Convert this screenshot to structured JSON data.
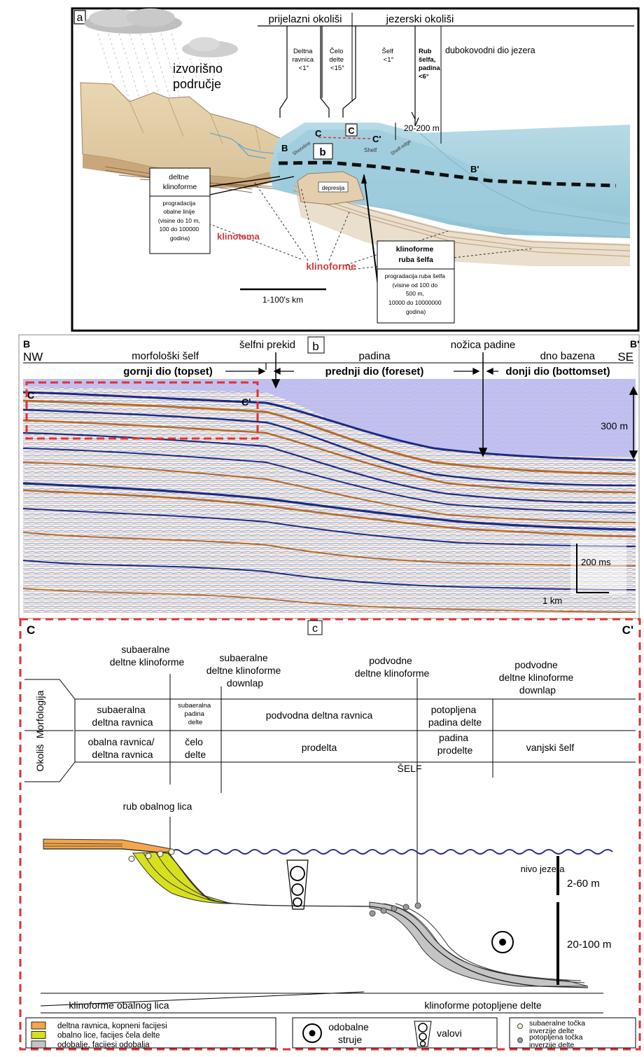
{
  "panel_a": {
    "letter": "a",
    "header_transitional": "prijelazni okoliši",
    "header_lake": "jezerski okoliši",
    "col_delta_plain": [
      "Deltna",
      "ravnica",
      "<1°"
    ],
    "col_delta_front": [
      "Čelo",
      "delte",
      "<15°"
    ],
    "col_shelf": [
      "Šelf",
      "<1°"
    ],
    "col_shelf_edge": [
      "Rub",
      "šelfa,",
      "padina",
      "<6°"
    ],
    "col_deep": "dubokovodni dio jezera",
    "source_area": [
      "izvorišno",
      "područje"
    ],
    "depth": "20-200 m",
    "label_c": "C",
    "label_c_box": "C",
    "label_c_prime": "C'",
    "label_b": "B",
    "label_b_box": "b",
    "label_b_prime": "B'",
    "shoreline": "Shoreline",
    "shelf": "Shelf",
    "shelf_edge": "Shelf-edge",
    "depression": "depresija",
    "deltaic_box_title": [
      "deltne",
      "klinoforme"
    ],
    "deltaic_box_body": [
      "progradacija",
      "obalne linije",
      "(visine do 10 m,",
      "100 do 100000",
      "godina)"
    ],
    "clinothem": "klinotema",
    "clinoforms": "klinoforme",
    "shelf_box_title": [
      "klinoforme",
      "ruba šelfa"
    ],
    "shelf_box_body": [
      "progradacija ruba šelfa",
      "(visine od 100 do",
      "500 m,",
      "10000 do 10000000",
      "godina)"
    ],
    "scale": "1-100's km"
  },
  "panel_b": {
    "letter": "b",
    "label_b": "B",
    "label_b_prime": "B'",
    "nw": "NW",
    "se": "SE",
    "morph_shelf": "morfološki šelf",
    "shelf_break": "šelfni prekid",
    "slope": "padina",
    "slope_toe": "nožica padine",
    "basin_floor": "dno bazena",
    "topset": "gornji dio (topset)",
    "foreset": "prednji dio (foreset)",
    "bottomset": "donji dio (bottomset)",
    "label_c": "C",
    "label_c_prime": "C'",
    "depth": "300 m",
    "time_scale": "200 ms",
    "distance_scale": "1 km"
  },
  "panel_c": {
    "label_c": "C",
    "letter": "c",
    "label_c_prime": "C'",
    "top_labels": {
      "l1": [
        "subaeralne",
        "deltne klinoforme"
      ],
      "l2": [
        "subaeralne",
        "deltne klinoforme",
        "downlap"
      ],
      "l3": [
        "podvodne",
        "deltne klinoforme"
      ],
      "l4": [
        "podvodne",
        "deltne klinoforme",
        "downlap"
      ]
    },
    "row_morph": "Morfologija",
    "row_env": "Okoliš",
    "morph_cells": {
      "c1": [
        "subaeralna",
        "deltna ravnica"
      ],
      "c2": [
        "subaeralna",
        "padina",
        "delte"
      ],
      "c3": "podvodna deltna ravnica",
      "c4": [
        "potopljena",
        "padina delte"
      ]
    },
    "env_cells": {
      "c1": [
        "obalna ravnica/",
        "deltna ravnica"
      ],
      "c2": [
        "čelo",
        "delte"
      ],
      "c3": "prodelta",
      "c4": [
        "padina",
        "prodelte"
      ],
      "c5": "vanjski šelf"
    },
    "shelf": "ŠELF",
    "shoreface_edge": "rub obalnog lica",
    "lake_level": "nivo jezera",
    "depth_upper": "2-60 m",
    "depth_lower": "20-100 m",
    "bottom_left": "klinoforme obalnog lica",
    "bottom_right": "klinoforme potopljene delte",
    "legend_facies": [
      {
        "label": "deltna ravnica, kopneni facijesi",
        "color": "#f3a64b"
      },
      {
        "label": "obalno lice, facijes čela delte",
        "color": "#d7e01e"
      },
      {
        "label": "odobalje, facijesi odobalja",
        "color": "#c4c4c4"
      }
    ],
    "legend_currents": [
      "odobalne",
      "struje"
    ],
    "legend_waves": "valovi",
    "legend_rollover": [
      {
        "label": [
          "subaeralne točka",
          "inverzije delte"
        ],
        "fill": "#f4f1dc"
      },
      {
        "label": [
          "potopljena točka",
          "inverzije delte"
        ],
        "fill": "#9a9a9a"
      }
    ]
  }
}
